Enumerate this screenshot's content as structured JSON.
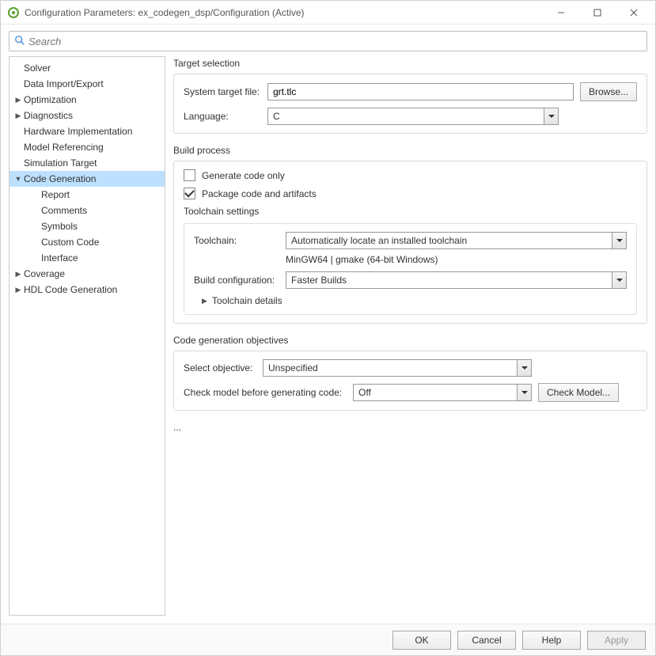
{
  "window": {
    "title": "Configuration Parameters: ex_codegen_dsp/Configuration (Active)"
  },
  "search": {
    "placeholder": "Search"
  },
  "sidebar": {
    "items": [
      {
        "label": "Solver",
        "level": 1,
        "caret": "none"
      },
      {
        "label": "Data Import/Export",
        "level": 1,
        "caret": "none"
      },
      {
        "label": "Optimization",
        "level": 1,
        "caret": "right"
      },
      {
        "label": "Diagnostics",
        "level": 1,
        "caret": "right"
      },
      {
        "label": "Hardware Implementation",
        "level": 1,
        "caret": "none"
      },
      {
        "label": "Model Referencing",
        "level": 1,
        "caret": "none"
      },
      {
        "label": "Simulation Target",
        "level": 1,
        "caret": "none"
      },
      {
        "label": "Code Generation",
        "level": 1,
        "caret": "down",
        "selected": true
      },
      {
        "label": "Report",
        "level": 2,
        "caret": "none"
      },
      {
        "label": "Comments",
        "level": 2,
        "caret": "none"
      },
      {
        "label": "Symbols",
        "level": 2,
        "caret": "none"
      },
      {
        "label": "Custom Code",
        "level": 2,
        "caret": "none"
      },
      {
        "label": "Interface",
        "level": 2,
        "caret": "none"
      },
      {
        "label": "Coverage",
        "level": 1,
        "caret": "right"
      },
      {
        "label": "HDL Code Generation",
        "level": 1,
        "caret": "right"
      }
    ]
  },
  "target_selection": {
    "title": "Target selection",
    "system_target_file_label": "System target file:",
    "system_target_file_value": "grt.tlc",
    "browse_label": "Browse...",
    "language_label": "Language:",
    "language_value": "C"
  },
  "build_process": {
    "title": "Build process",
    "generate_code_only_label": "Generate code only",
    "generate_code_only_checked": false,
    "package_code_label": "Package code and artifacts",
    "package_code_checked": true,
    "toolchain_settings_title": "Toolchain settings",
    "toolchain_label": "Toolchain:",
    "toolchain_value": "Automatically locate an installed toolchain",
    "toolchain_resolved": "MinGW64 | gmake (64-bit Windows)",
    "build_config_label": "Build configuration:",
    "build_config_value": "Faster Builds",
    "toolchain_details_label": "Toolchain details"
  },
  "objectives": {
    "title": "Code generation objectives",
    "select_objective_label": "Select objective:",
    "select_objective_value": "Unspecified",
    "check_model_label": "Check model before generating code:",
    "check_model_value": "Off",
    "check_model_button": "Check Model..."
  },
  "ellipsis": "...",
  "footer": {
    "ok": "OK",
    "cancel": "Cancel",
    "help": "Help",
    "apply": "Apply"
  },
  "colors": {
    "selection": "#bde0ff",
    "border": "#cccccc"
  }
}
